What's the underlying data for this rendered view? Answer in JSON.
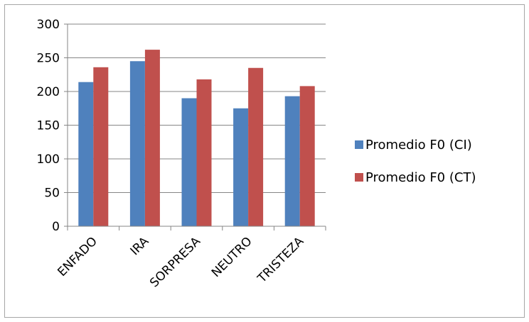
{
  "chart_data": {
    "type": "bar",
    "title": "",
    "xlabel": "",
    "ylabel": "",
    "categories": [
      "ENFADO",
      "IRA",
      "SORPRESA",
      "NEUTRO",
      "TRISTEZA"
    ],
    "series": [
      {
        "name": "Promedio F0 (CI)",
        "color": "#4f81bd",
        "values": [
          214,
          245,
          190,
          175,
          193
        ]
      },
      {
        "name": "Promedio F0 (CT)",
        "color": "#c0504d",
        "values": [
          236,
          262,
          218,
          235,
          208
        ]
      }
    ],
    "ylim": [
      0,
      300
    ],
    "yticks": [
      "0",
      "50",
      "100",
      "150",
      "200",
      "250",
      "300"
    ],
    "grid": true,
    "legend": "right"
  }
}
